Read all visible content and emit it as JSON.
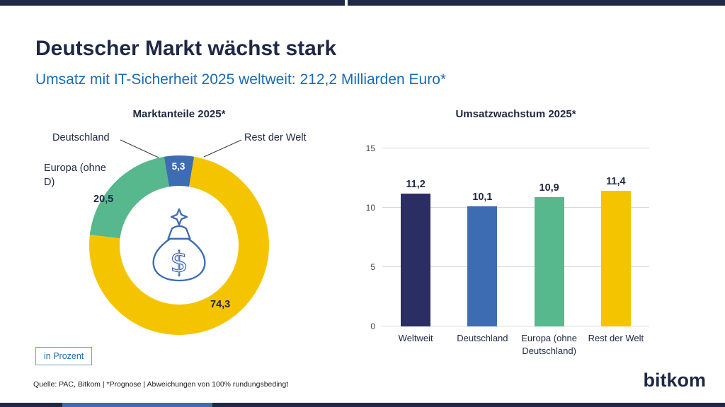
{
  "page": {
    "title": "Deutscher Markt wächst stark",
    "subtitle": "Umsatz mit IT-Sicherheit 2025 weltweit: 212,2 Milliarden Euro*",
    "unit_badge": "in Prozent",
    "source_note": "Quelle: PAC, Bitkom | *Prognose | Abweichungen von 100% rundungsbedingt",
    "brand": "bitkom"
  },
  "colors": {
    "navy": "#1F2845",
    "bar_navy": "#2B2E62",
    "blue": "#3E6CB2",
    "green": "#57B78D",
    "yellow": "#F5C400",
    "subtitle_blue": "#1B6BB4"
  },
  "chart_data": [
    {
      "type": "pie",
      "donut": true,
      "title": "Marktanteile 2025*",
      "unit": "Prozent",
      "segments": [
        {
          "label": "Deutschland",
          "value": 5.3,
          "display": "5,3",
          "color": "#3E6CB2"
        },
        {
          "label": "Rest der Welt",
          "value": 74.3,
          "display": "74,3",
          "color": "#F5C400"
        },
        {
          "label": "Europa (ohne D)",
          "value": 20.5,
          "display": "20,5",
          "color": "#57B78D"
        }
      ],
      "center_icon": "money-bag-icon"
    },
    {
      "type": "bar",
      "title": "Umsatzwachstum 2025*",
      "categories": [
        "Weltweit",
        "Deutschland",
        "Europa (ohne Deutschland)",
        "Rest der Welt"
      ],
      "values": [
        11.2,
        10.1,
        10.9,
        11.4
      ],
      "display_values": [
        "11,2",
        "10,1",
        "10,9",
        "11,4"
      ],
      "bar_colors": [
        "#2B2E62",
        "#3E6CB2",
        "#57B78D",
        "#F5C400"
      ],
      "ylim": [
        0,
        15
      ],
      "yticks": [
        0,
        5,
        10,
        15
      ],
      "grid": true,
      "legend": "none"
    }
  ]
}
